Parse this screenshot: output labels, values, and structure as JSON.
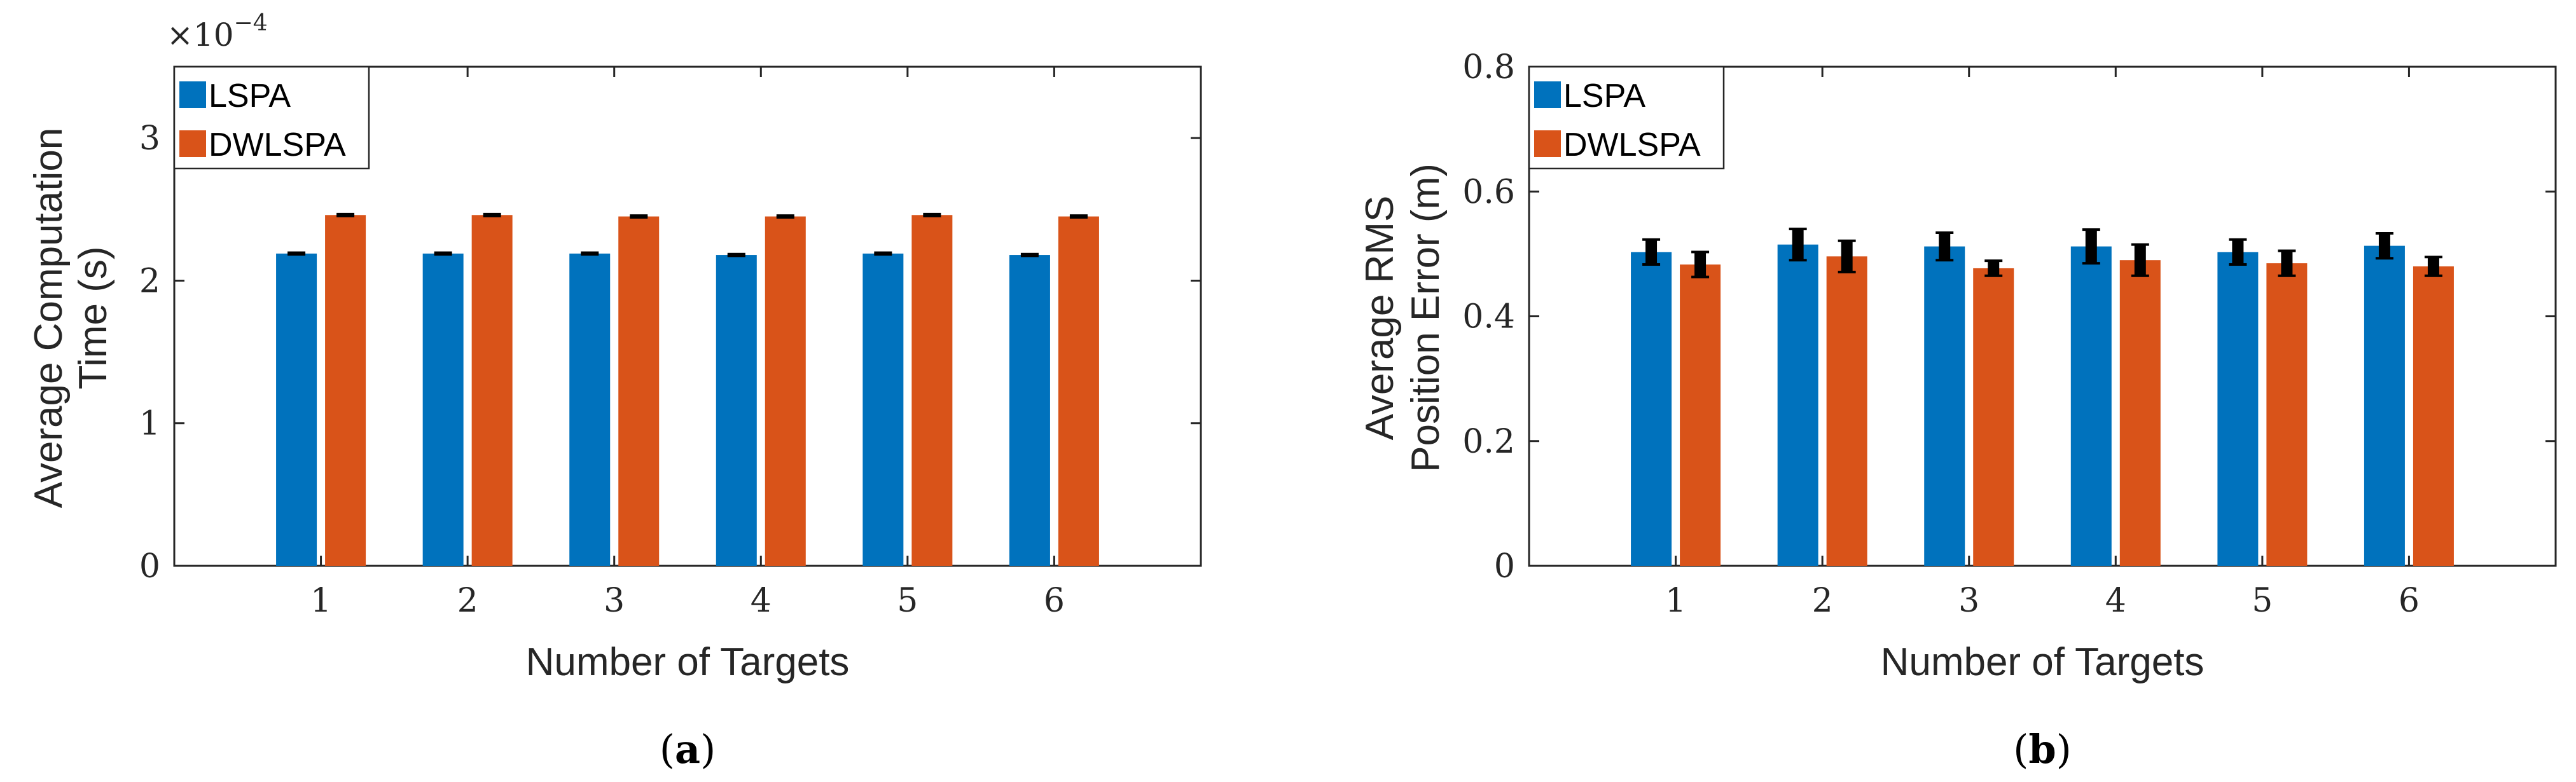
{
  "colors": {
    "lspa": "#0072BD",
    "dwlspa": "#D95319",
    "errorbar": "#000000",
    "axis": "#262626"
  },
  "chart_data": [
    {
      "type": "bar",
      "caption_open": "(",
      "caption_letter": "a",
      "caption_close": ")",
      "xlabel": "Number of Targets",
      "ylabel_line1": "Average Computation",
      "ylabel_line2": "Time (s)",
      "exponent_base": "×10",
      "exponent_power": "−4",
      "categories": [
        "1",
        "2",
        "3",
        "4",
        "5",
        "6"
      ],
      "ylim": [
        0,
        3.5
      ],
      "yticks": [
        0,
        1,
        2,
        3
      ],
      "ytick_labels": [
        "0",
        "1",
        "2",
        "3"
      ],
      "legend_position": "top-left",
      "series": [
        {
          "name": "LSPA",
          "values": [
            2.19,
            2.19,
            2.19,
            2.18,
            2.19,
            2.18
          ],
          "errors": [
            0.006,
            0.006,
            0.006,
            0.006,
            0.006,
            0.006
          ]
        },
        {
          "name": "DWLSPA",
          "values": [
            2.46,
            2.46,
            2.45,
            2.45,
            2.46,
            2.45
          ],
          "errors": [
            0.006,
            0.006,
            0.006,
            0.006,
            0.006,
            0.006
          ]
        }
      ]
    },
    {
      "type": "bar",
      "caption_open": "(",
      "caption_letter": "b",
      "caption_close": ")",
      "xlabel": "Number of Targets",
      "ylabel_line1": "Average RMS",
      "ylabel_line2": "Position Error (m)",
      "categories": [
        "1",
        "2",
        "3",
        "4",
        "5",
        "6"
      ],
      "ylim": [
        0,
        0.8
      ],
      "yticks": [
        0,
        0.2,
        0.4,
        0.6,
        0.8
      ],
      "ytick_labels": [
        "0",
        "0.2",
        "0.4",
        "0.6",
        "0.8"
      ],
      "legend_position": "top-left",
      "series": [
        {
          "name": "LSPA",
          "values": [
            0.503,
            0.515,
            0.512,
            0.512,
            0.503,
            0.513
          ],
          "errors": [
            0.02,
            0.025,
            0.022,
            0.027,
            0.02,
            0.02
          ]
        },
        {
          "name": "DWLSPA",
          "values": [
            0.483,
            0.496,
            0.477,
            0.49,
            0.485,
            0.48
          ],
          "errors": [
            0.02,
            0.025,
            0.012,
            0.025,
            0.02,
            0.015
          ]
        }
      ]
    }
  ]
}
